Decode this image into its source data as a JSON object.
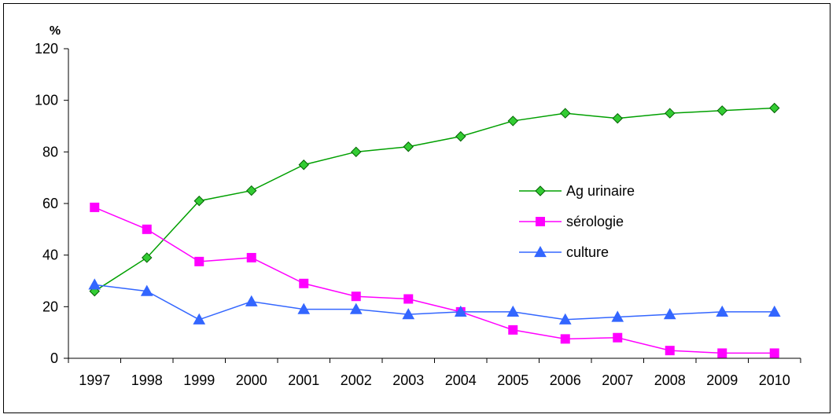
{
  "chart_data": {
    "type": "line",
    "title": "",
    "xlabel": "",
    "ylabel": "%",
    "ylim": [
      0,
      120
    ],
    "yticks": [
      0,
      20,
      40,
      60,
      80,
      100,
      120
    ],
    "grid": false,
    "legend_position": "right-center",
    "categories": [
      "1997",
      "1998",
      "1999",
      "2000",
      "2001",
      "2002",
      "2003",
      "2004",
      "2005",
      "2006",
      "2007",
      "2008",
      "2009",
      "2010"
    ],
    "series": [
      {
        "name": "Ag urinaire",
        "color": "#00A000",
        "fill": "#33CC33",
        "marker": "diamond",
        "values": [
          26,
          39,
          61,
          65,
          75,
          80,
          82,
          86,
          92,
          95,
          93,
          95,
          96,
          97
        ]
      },
      {
        "name": "sérologie",
        "color": "#FF00FF",
        "fill": "#FF00FF",
        "marker": "square",
        "values": [
          58.5,
          50,
          37.5,
          39,
          29,
          24,
          23,
          18,
          11,
          7.5,
          8,
          3,
          2,
          2
        ]
      },
      {
        "name": "culture",
        "color": "#3366FF",
        "fill": "#3366FF",
        "marker": "triangle",
        "values": [
          28.5,
          26,
          15,
          22,
          19,
          19,
          17,
          18,
          18,
          15,
          16,
          17,
          18,
          18
        ]
      }
    ]
  }
}
